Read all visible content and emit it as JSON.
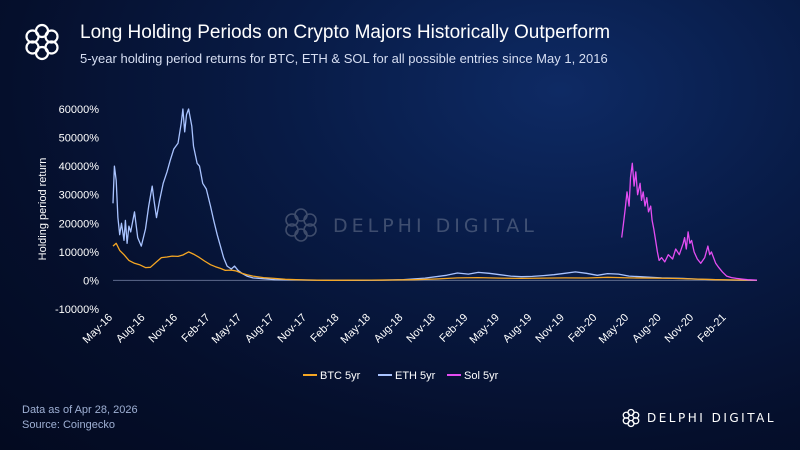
{
  "header": {
    "title": "Long Holding Periods on Crypto Majors Historically Outperform",
    "subtitle": "5-year holding period returns for BTC, ETH & SOL for all possible entries since May 1, 2016"
  },
  "footer": {
    "data_note": "Data as of Apr 28, 2026",
    "source": "Source: Coingecko",
    "brand": "DELPHI DIGITAL"
  },
  "watermark": "DELPHI DIGITAL",
  "colors": {
    "btc": "#f5a623",
    "eth": "#a9c3ff",
    "sol": "#e44df2"
  },
  "chart_data": {
    "type": "line",
    "ylabel": "Holding period return",
    "y_unit": "%",
    "ylim": [
      -10000,
      60000
    ],
    "y_ticks": [
      -10000,
      0,
      10000,
      20000,
      30000,
      40000,
      50000,
      60000
    ],
    "y_tick_labels": [
      "-10000%",
      "0%",
      "10000%",
      "20000%",
      "30000%",
      "40000%",
      "50000%",
      "60000%"
    ],
    "xlim": [
      "2016-05-01",
      "2021-04-28"
    ],
    "x_tick_labels": [
      "May-16",
      "Aug-16",
      "Nov-16",
      "Feb-17",
      "May-17",
      "Aug-17",
      "Nov-17",
      "Feb-18",
      "May-18",
      "Aug-18",
      "Nov-18",
      "Feb-19",
      "May-19",
      "Aug-19",
      "Nov-19",
      "Feb-20",
      "May-20",
      "Aug-20",
      "Nov-20",
      "Feb-21"
    ],
    "x_ticks": [
      "2016-05-01",
      "2016-08-01",
      "2016-11-01",
      "2017-02-01",
      "2017-05-01",
      "2017-08-01",
      "2017-11-01",
      "2018-02-01",
      "2018-05-01",
      "2018-08-01",
      "2018-11-01",
      "2019-02-01",
      "2019-05-01",
      "2019-08-01",
      "2019-11-01",
      "2020-02-01",
      "2020-05-01",
      "2020-08-01",
      "2020-11-01",
      "2021-02-01"
    ],
    "legend_position": "bottom",
    "series": [
      {
        "name": "BTC 5yr",
        "points": [
          [
            "2016-05-01",
            12000
          ],
          [
            "2016-05-10",
            13000
          ],
          [
            "2016-05-20",
            10500
          ],
          [
            "2016-06-01",
            9000
          ],
          [
            "2016-06-15",
            7000
          ],
          [
            "2016-07-01",
            6000
          ],
          [
            "2016-07-15",
            5500
          ],
          [
            "2016-08-01",
            4500
          ],
          [
            "2016-08-15",
            4600
          ],
          [
            "2016-09-01",
            6500
          ],
          [
            "2016-09-15",
            8000
          ],
          [
            "2016-10-01",
            8200
          ],
          [
            "2016-10-15",
            8500
          ],
          [
            "2016-11-01",
            8400
          ],
          [
            "2016-11-15",
            8900
          ],
          [
            "2016-12-01",
            10000
          ],
          [
            "2016-12-15",
            9200
          ],
          [
            "2017-01-01",
            8000
          ],
          [
            "2017-01-15",
            6800
          ],
          [
            "2017-02-01",
            5500
          ],
          [
            "2017-02-15",
            4800
          ],
          [
            "2017-03-01",
            4200
          ],
          [
            "2017-03-15",
            3500
          ],
          [
            "2017-04-01",
            3600
          ],
          [
            "2017-04-15",
            3300
          ],
          [
            "2017-05-01",
            2500
          ],
          [
            "2017-05-15",
            2000
          ],
          [
            "2017-06-01",
            1500
          ],
          [
            "2017-07-01",
            1000
          ],
          [
            "2017-08-01",
            700
          ],
          [
            "2017-09-01",
            400
          ],
          [
            "2017-10-01",
            250
          ],
          [
            "2017-11-01",
            150
          ],
          [
            "2017-12-01",
            80
          ],
          [
            "2018-01-01",
            60
          ],
          [
            "2018-03-01",
            80
          ],
          [
            "2018-05-01",
            100
          ],
          [
            "2018-07-01",
            150
          ],
          [
            "2018-09-01",
            250
          ],
          [
            "2018-11-01",
            500
          ],
          [
            "2019-01-01",
            900
          ],
          [
            "2019-03-01",
            1000
          ],
          [
            "2019-05-01",
            800
          ],
          [
            "2019-07-01",
            700
          ],
          [
            "2019-09-01",
            800
          ],
          [
            "2019-11-01",
            900
          ],
          [
            "2020-01-01",
            850
          ],
          [
            "2020-03-01",
            1100
          ],
          [
            "2020-05-01",
            900
          ],
          [
            "2020-07-01",
            800
          ],
          [
            "2020-09-01",
            700
          ],
          [
            "2020-11-01",
            500
          ],
          [
            "2021-01-01",
            250
          ],
          [
            "2021-03-01",
            150
          ],
          [
            "2021-04-28",
            100
          ]
        ]
      },
      {
        "name": "ETH 5yr",
        "points": [
          [
            "2016-05-01",
            27000
          ],
          [
            "2016-05-05",
            40000
          ],
          [
            "2016-05-10",
            35000
          ],
          [
            "2016-05-15",
            22000
          ],
          [
            "2016-05-20",
            16000
          ],
          [
            "2016-05-25",
            20000
          ],
          [
            "2016-06-01",
            14000
          ],
          [
            "2016-06-05",
            21000
          ],
          [
            "2016-06-10",
            13000
          ],
          [
            "2016-06-15",
            19000
          ],
          [
            "2016-06-20",
            17000
          ],
          [
            "2016-07-01",
            24000
          ],
          [
            "2016-07-10",
            15000
          ],
          [
            "2016-07-20",
            12000
          ],
          [
            "2016-08-01",
            18000
          ],
          [
            "2016-08-10",
            26000
          ],
          [
            "2016-08-20",
            33000
          ],
          [
            "2016-08-25",
            28000
          ],
          [
            "2016-09-01",
            22000
          ],
          [
            "2016-09-10",
            28000
          ],
          [
            "2016-09-20",
            34000
          ],
          [
            "2016-10-01",
            38000
          ],
          [
            "2016-10-10",
            42000
          ],
          [
            "2016-10-20",
            46000
          ],
          [
            "2016-11-01",
            48000
          ],
          [
            "2016-11-10",
            55000
          ],
          [
            "2016-11-15",
            60000
          ],
          [
            "2016-11-20",
            52000
          ],
          [
            "2016-11-25",
            58000
          ],
          [
            "2016-12-01",
            60000
          ],
          [
            "2016-12-10",
            54000
          ],
          [
            "2016-12-15",
            47000
          ],
          [
            "2016-12-25",
            41000
          ],
          [
            "2017-01-01",
            40000
          ],
          [
            "2017-01-10",
            34000
          ],
          [
            "2017-01-20",
            32000
          ],
          [
            "2017-02-01",
            26000
          ],
          [
            "2017-02-10",
            21000
          ],
          [
            "2017-02-20",
            16000
          ],
          [
            "2017-03-01",
            12000
          ],
          [
            "2017-03-10",
            8000
          ],
          [
            "2017-03-20",
            5000
          ],
          [
            "2017-04-01",
            4000
          ],
          [
            "2017-04-10",
            5000
          ],
          [
            "2017-04-20",
            3500
          ],
          [
            "2017-05-01",
            2500
          ],
          [
            "2017-05-15",
            1500
          ],
          [
            "2017-06-01",
            900
          ],
          [
            "2017-07-01",
            600
          ],
          [
            "2017-08-01",
            300
          ],
          [
            "2017-10-01",
            200
          ],
          [
            "2017-12-01",
            100
          ],
          [
            "2018-02-01",
            50
          ],
          [
            "2018-04-01",
            30
          ],
          [
            "2018-06-01",
            100
          ],
          [
            "2018-08-01",
            300
          ],
          [
            "2018-10-01",
            800
          ],
          [
            "2018-12-01",
            1800
          ],
          [
            "2019-01-01",
            2600
          ],
          [
            "2019-02-01",
            2200
          ],
          [
            "2019-03-01",
            2800
          ],
          [
            "2019-04-01",
            2500
          ],
          [
            "2019-05-01",
            2000
          ],
          [
            "2019-06-01",
            1500
          ],
          [
            "2019-07-01",
            1300
          ],
          [
            "2019-08-01",
            1400
          ],
          [
            "2019-09-01",
            1700
          ],
          [
            "2019-10-01",
            2000
          ],
          [
            "2019-11-01",
            2500
          ],
          [
            "2019-12-01",
            3000
          ],
          [
            "2020-01-01",
            2500
          ],
          [
            "2020-02-01",
            1800
          ],
          [
            "2020-03-01",
            2400
          ],
          [
            "2020-04-01",
            2200
          ],
          [
            "2020-05-01",
            1500
          ],
          [
            "2020-06-01",
            1300
          ],
          [
            "2020-07-01",
            1100
          ],
          [
            "2020-08-01",
            900
          ],
          [
            "2020-09-01",
            800
          ],
          [
            "2020-10-01",
            700
          ],
          [
            "2020-11-01",
            500
          ],
          [
            "2020-12-01",
            350
          ],
          [
            "2021-01-01",
            250
          ],
          [
            "2021-02-01",
            150
          ],
          [
            "2021-04-28",
            50
          ]
        ]
      },
      {
        "name": "Sol 5yr",
        "points": [
          [
            "2020-04-10",
            15000
          ],
          [
            "2020-04-15",
            20000
          ],
          [
            "2020-04-20",
            25000
          ],
          [
            "2020-04-25",
            31000
          ],
          [
            "2020-05-01",
            26000
          ],
          [
            "2020-05-05",
            36000
          ],
          [
            "2020-05-10",
            41000
          ],
          [
            "2020-05-15",
            33000
          ],
          [
            "2020-05-20",
            38000
          ],
          [
            "2020-05-25",
            30000
          ],
          [
            "2020-06-01",
            34000
          ],
          [
            "2020-06-05",
            28000
          ],
          [
            "2020-06-10",
            31000
          ],
          [
            "2020-06-15",
            26000
          ],
          [
            "2020-06-20",
            29000
          ],
          [
            "2020-06-25",
            24000
          ],
          [
            "2020-07-01",
            26000
          ],
          [
            "2020-07-05",
            21000
          ],
          [
            "2020-07-10",
            18000
          ],
          [
            "2020-07-15",
            14000
          ],
          [
            "2020-07-20",
            10000
          ],
          [
            "2020-07-25",
            7000
          ],
          [
            "2020-08-01",
            8000
          ],
          [
            "2020-08-10",
            6500
          ],
          [
            "2020-08-20",
            9000
          ],
          [
            "2020-09-01",
            7500
          ],
          [
            "2020-09-10",
            11000
          ],
          [
            "2020-09-20",
            9000
          ],
          [
            "2020-10-01",
            13000
          ],
          [
            "2020-10-05",
            15000
          ],
          [
            "2020-10-10",
            11000
          ],
          [
            "2020-10-15",
            17000
          ],
          [
            "2020-10-20",
            13000
          ],
          [
            "2020-10-25",
            14000
          ],
          [
            "2020-11-01",
            10000
          ],
          [
            "2020-11-10",
            7500
          ],
          [
            "2020-11-20",
            6000
          ],
          [
            "2020-12-01",
            8000
          ],
          [
            "2020-12-10",
            12000
          ],
          [
            "2020-12-15",
            9000
          ],
          [
            "2020-12-20",
            10000
          ],
          [
            "2021-01-01",
            6000
          ],
          [
            "2021-01-10",
            4500
          ],
          [
            "2021-01-20",
            3000
          ],
          [
            "2021-02-01",
            1500
          ],
          [
            "2021-02-15",
            1000
          ],
          [
            "2021-03-01",
            700
          ],
          [
            "2021-03-15",
            500
          ],
          [
            "2021-04-01",
            300
          ],
          [
            "2021-04-28",
            100
          ]
        ]
      }
    ]
  }
}
